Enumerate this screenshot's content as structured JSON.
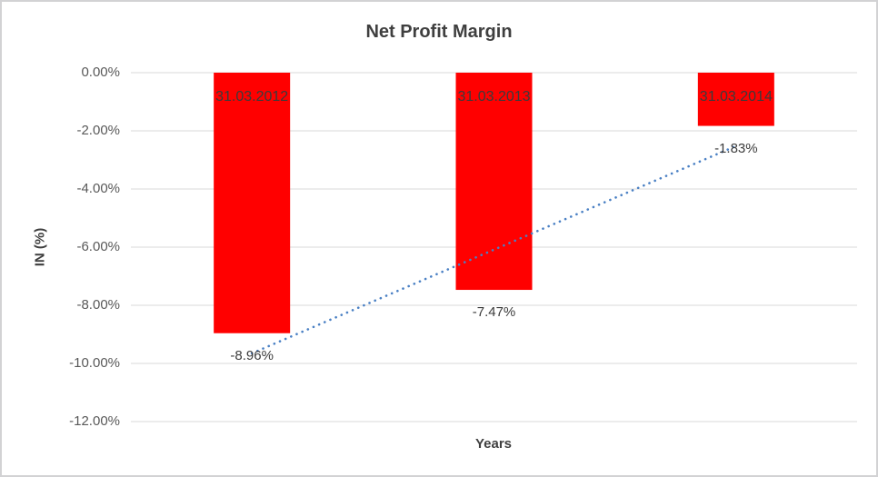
{
  "chart_data": {
    "type": "bar",
    "title": "Net Profit Margin",
    "xlabel": "Years",
    "ylabel": "IN (%)",
    "categories": [
      "31.03.2012",
      "31.03.2013",
      "31.03.2014"
    ],
    "values": [
      -8.96,
      -7.47,
      -1.83
    ],
    "data_labels": [
      "-8.96%",
      "-7.47%",
      "-1.83%"
    ],
    "ylim": [
      -12,
      0
    ],
    "ytick_step": 2,
    "ytick_labels": [
      "0.00%",
      "-2.00%",
      "-4.00%",
      "-6.00%",
      "-8.00%",
      "-10.00%",
      "-12.00%"
    ],
    "grid": true,
    "legend": false,
    "trendline": {
      "type": "linear",
      "style": "dotted"
    },
    "colors": {
      "bar": "#FF0000",
      "trendline": "#4A80C4",
      "gridline": "#D9D9D9",
      "title_text": "#3F3F3F",
      "tick_text": "#595959",
      "label_text": "#3B3B3B"
    }
  }
}
